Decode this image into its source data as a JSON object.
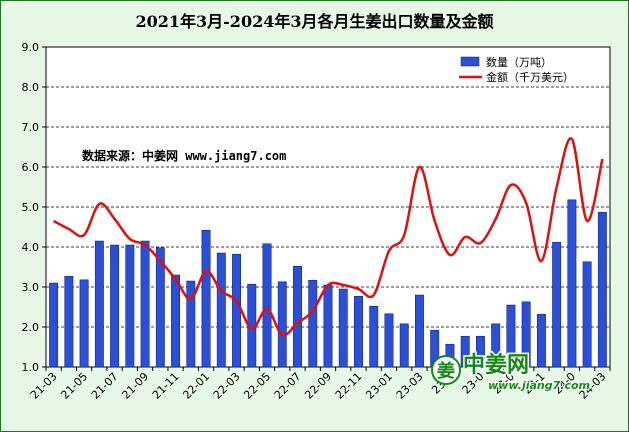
{
  "chart_data": {
    "type": "bar",
    "title": "2021年3月-2024年3月各月生姜出口数量及金额",
    "categories": [
      "21-03",
      "21-04",
      "21-05",
      "21-06",
      "21-07",
      "21-08",
      "21-09",
      "21-10",
      "21-11",
      "21-12",
      "22-01",
      "22-02",
      "22-03",
      "22-04",
      "22-05",
      "22-06",
      "22-07",
      "22-08",
      "22-09",
      "22-10",
      "22-11",
      "22-12",
      "23-01",
      "23-02",
      "23-03",
      "23-04",
      "23-05",
      "23-06",
      "23-07",
      "23-08",
      "23-09",
      "23-10",
      "23-11",
      "23-12",
      "24-01",
      "24-02",
      "24-03"
    ],
    "x_tick_labels": [
      "21-03",
      "21-05",
      "21-07",
      "21-09",
      "21-11",
      "22-01",
      "22-03",
      "22-05",
      "22-07",
      "22-09",
      "22-11",
      "23-01",
      "23-03",
      "23-05",
      "23-07",
      "23-09",
      "23-11",
      "24-01",
      "24-03"
    ],
    "x_tick_labels_display": [
      "21-03",
      "21-05",
      "21-07",
      "21-09",
      "21-11",
      "22-01",
      "22-03",
      "22-05",
      "22-07",
      "22-09",
      "22-11",
      "23-01",
      "23-03",
      "23-0",
      "23-0",
      "23-0",
      "23-1",
      "24-0",
      "24-03"
    ],
    "series": [
      {
        "name": "数量（万吨）",
        "kind": "bar",
        "color": "#2b4fd6",
        "values": [
          3.1,
          3.27,
          3.18,
          4.15,
          4.05,
          4.05,
          4.15,
          3.98,
          3.3,
          3.15,
          4.42,
          3.85,
          3.82,
          3.07,
          4.08,
          3.13,
          3.52,
          3.17,
          3.05,
          2.95,
          2.77,
          2.52,
          2.33,
          2.08,
          2.8,
          1.92,
          1.57,
          1.77,
          1.77,
          2.08,
          2.55,
          2.63,
          2.32,
          4.12,
          5.18,
          3.63,
          4.87
        ]
      },
      {
        "name": "金额（千万美元）",
        "kind": "line",
        "color": "#e01010",
        "values": [
          4.65,
          4.45,
          4.3,
          5.08,
          4.7,
          4.2,
          4.05,
          3.65,
          3.2,
          2.7,
          3.4,
          2.9,
          2.65,
          1.95,
          2.45,
          1.8,
          2.1,
          2.4,
          3.05,
          3.05,
          2.95,
          2.8,
          3.9,
          4.3,
          6.0,
          4.65,
          3.8,
          4.25,
          4.1,
          4.7,
          5.55,
          5.1,
          3.65,
          5.5,
          6.7,
          4.65,
          6.2
        ]
      }
    ],
    "y_ticks": [
      "1.0",
      "2.0",
      "3.0",
      "4.0",
      "5.0",
      "6.0",
      "7.0",
      "8.0",
      "9.0"
    ],
    "ylim": [
      1.0,
      9.0
    ],
    "grid": "horizontal dashed",
    "legend_position": "top-right",
    "annotation": "数据来源：中姜网 www.jiang7.com",
    "watermark": {
      "brand": "中姜网",
      "brand_prefix": "姜",
      "url": "www.jiang7.com"
    }
  }
}
